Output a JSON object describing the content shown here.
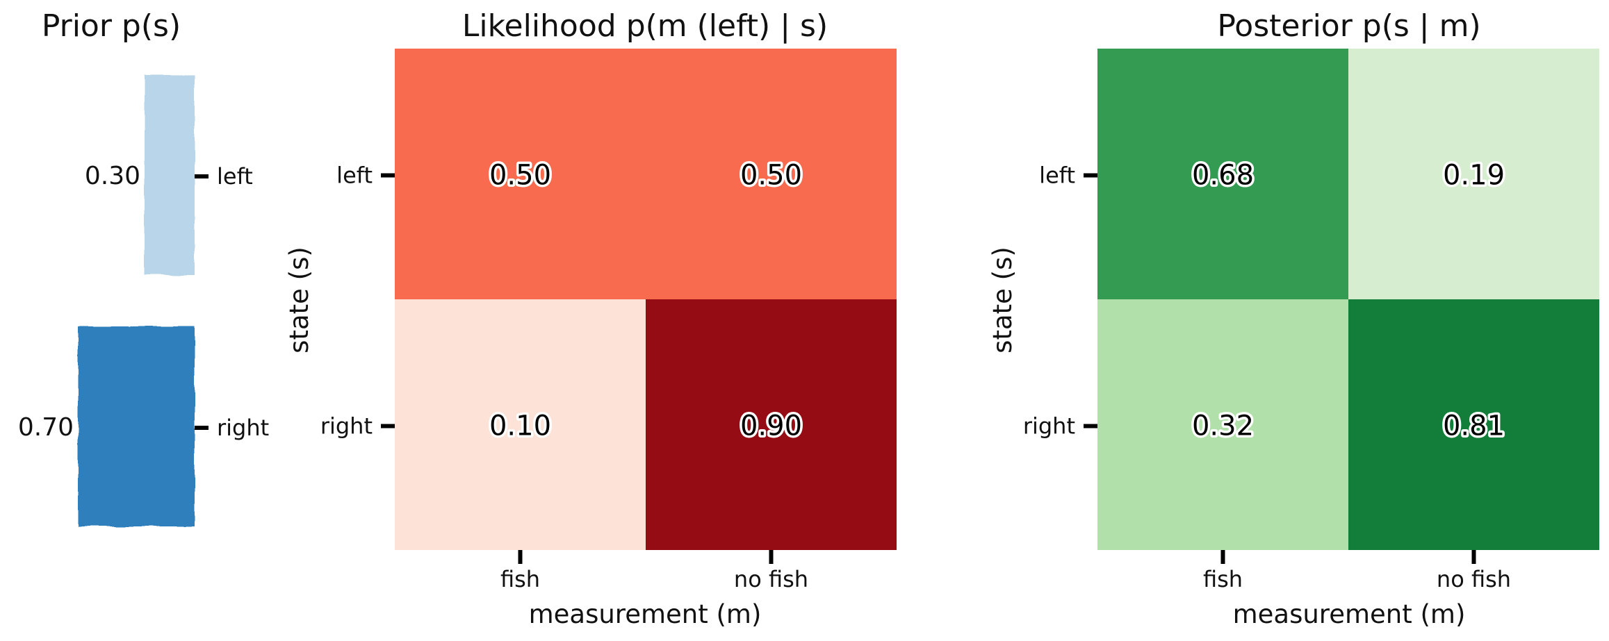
{
  "chart_data": [
    {
      "type": "bar",
      "orientation": "horizontal",
      "title": "Prior p(s)",
      "categories": [
        "left",
        "right"
      ],
      "values": [
        0.3,
        0.7
      ],
      "value_labels": [
        "0.30",
        "0.70"
      ],
      "xlim": [
        0,
        1
      ],
      "colors": [
        "#b9d5ea",
        "#2d7fbc"
      ],
      "axes_visible": false,
      "grid": false
    },
    {
      "type": "heatmap",
      "title": "Likelihood p(m (left) | s)",
      "xlabel": "measurement (m)",
      "ylabel": "state (s)",
      "x_categories": [
        "fish",
        "no fish"
      ],
      "y_categories": [
        "left",
        "right"
      ],
      "values": [
        [
          0.5,
          0.5
        ],
        [
          0.1,
          0.9
        ]
      ],
      "value_labels": [
        [
          "0.50",
          "0.50"
        ],
        [
          "0.10",
          "0.90"
        ]
      ],
      "colormap": "Reds",
      "cell_colors": [
        [
          "#f96b4e",
          "#f96b4e"
        ],
        [
          "#fde2d8",
          "#960c14"
        ]
      ],
      "grid": false
    },
    {
      "type": "heatmap",
      "title": "Posterior p(s | m)",
      "xlabel": "measurement (m)",
      "ylabel": "state (s)",
      "x_categories": [
        "fish",
        "no fish"
      ],
      "y_categories": [
        "left",
        "right"
      ],
      "values": [
        [
          0.68,
          0.19
        ],
        [
          0.32,
          0.81
        ]
      ],
      "value_labels": [
        [
          "0.68",
          "0.19"
        ],
        [
          "0.32",
          "0.81"
        ]
      ],
      "colormap": "Greens",
      "cell_colors": [
        [
          "#349b52",
          "#d6edcf"
        ],
        [
          "#b2e0aa",
          "#137d3a"
        ]
      ],
      "grid": false
    }
  ]
}
